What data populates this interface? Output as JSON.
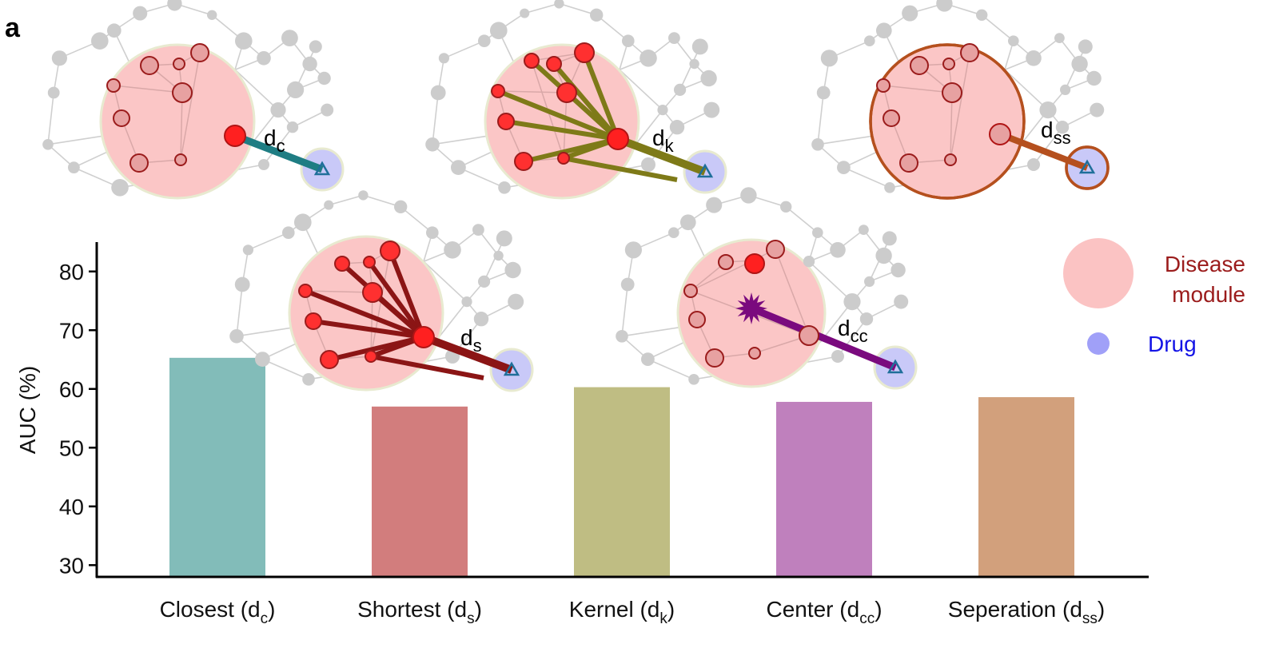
{
  "panel_label": "a",
  "chart_data": {
    "type": "bar",
    "ylabel": "AUC (%)",
    "xlabel": "",
    "ylim": [
      28,
      85
    ],
    "yticks": [
      30,
      40,
      50,
      60,
      70,
      80
    ],
    "categories": [
      {
        "main": "Closest (d",
        "sub": "c",
        "tail": ")"
      },
      {
        "main": "Shortest (d",
        "sub": "s",
        "tail": ")"
      },
      {
        "main": "Kernel (d",
        "sub": "k",
        "tail": ")"
      },
      {
        "main": "Center (d",
        "sub": "cc",
        "tail": ")"
      },
      {
        "main": "Seperation (d",
        "sub": "ss",
        "tail": ")"
      }
    ],
    "values": [
      65.3,
      57.0,
      60.3,
      57.8,
      58.6
    ],
    "colors": [
      "#82bcb9",
      "#d27d7d",
      "#bfbd83",
      "#bf80bd",
      "#d2a07c"
    ]
  },
  "measures": [
    {
      "name": "closest",
      "label": "d",
      "sub": "c",
      "color": "#1f7d83"
    },
    {
      "name": "kernel",
      "label": "d",
      "sub": "k",
      "color": "#7e7a18"
    },
    {
      "name": "separation",
      "label": "d",
      "sub": "ss",
      "color": "#b5501e"
    },
    {
      "name": "shortest",
      "label": "d",
      "sub": "s",
      "color": "#8b1515"
    },
    {
      "name": "center",
      "label": "d",
      "sub": "cc",
      "color": "#7a0a7e"
    }
  ],
  "legend": {
    "disease_label_1": "Disease",
    "disease_label_2": "module",
    "drug_label": "Drug",
    "disease_color": "#fbc3c3",
    "drug_color": "#a0a0f8",
    "disease_text_color": "#9b1c1c",
    "drug_text_color": "#1414e6"
  }
}
